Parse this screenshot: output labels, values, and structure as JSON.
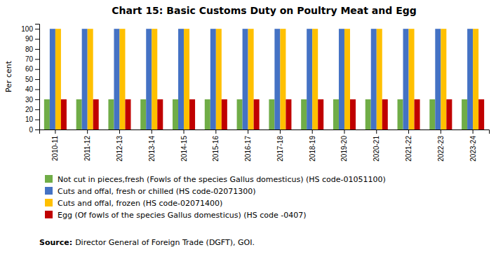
{
  "chart_data": {
    "type": "bar",
    "title": "Chart 15: Basic Customs Duty on Poultry Meat and Egg",
    "categories": [
      "2010-11",
      "2011-12",
      "2012-13",
      "2013-14",
      "2014-15",
      "2015-16",
      "2016-17",
      "2017-18",
      "2018-19",
      "2019-20",
      "2020-21",
      "2021-22",
      "2022-23",
      "2023-24"
    ],
    "series": [
      {
        "name": "Not cut in pieces,fresh (Fowls of the species Gallus domesticus) (HS code-01051100)",
        "color": "#70ad47",
        "values": [
          30,
          30,
          30,
          30,
          30,
          30,
          30,
          30,
          30,
          30,
          30,
          30,
          30,
          30
        ]
      },
      {
        "name": "Cuts and  offal, fresh or chilled (HS code-02071300)",
        "color": "#4472c4",
        "values": [
          100,
          100,
          100,
          100,
          100,
          100,
          100,
          100,
          100,
          100,
          100,
          100,
          100,
          100
        ]
      },
      {
        "name": "Cuts and offal, frozen (HS code-02071400)",
        "color": "#ffc000",
        "values": [
          100,
          100,
          100,
          100,
          100,
          100,
          100,
          100,
          100,
          100,
          100,
          100,
          100,
          100
        ]
      },
      {
        "name": "Egg (Of fowls of the species Gallus domesticus) (HS code -0407)",
        "color": "#c00000",
        "values": [
          30,
          30,
          30,
          30,
          30,
          30,
          30,
          30,
          30,
          30,
          30,
          30,
          30,
          30
        ]
      }
    ],
    "ylabel": "Per cent",
    "ylim": [
      0,
      105
    ],
    "yticks": [
      0,
      10,
      20,
      30,
      40,
      50,
      60,
      70,
      80,
      90,
      100
    ],
    "grid": false,
    "legend": "bottom",
    "annotations": [
      "Source:",
      "Director General of Foreign Trade (DGFT), GOI."
    ]
  }
}
